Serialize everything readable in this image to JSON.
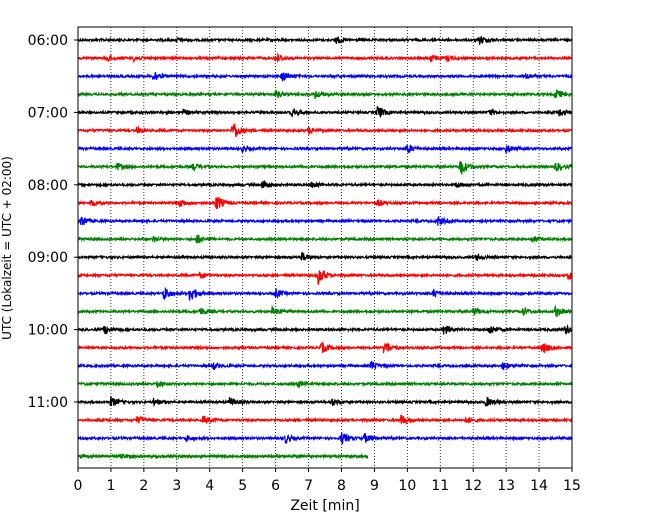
{
  "chart_data": {
    "type": "line",
    "title": "",
    "xlabel": "Zeit  [min]",
    "ylabel": "UTC (Lokalzeit = UTC + 02:00)",
    "xlim": [
      0,
      15
    ],
    "x_ticks": [
      "0",
      "1",
      "2",
      "3",
      "4",
      "5",
      "6",
      "7",
      "8",
      "9",
      "10",
      "11",
      "12",
      "13",
      "14",
      "15"
    ],
    "y_tick_labels": [
      "06:00",
      "07:00",
      "08:00",
      "09:00",
      "10:00",
      "11:00"
    ],
    "grid": "vertical-dotted",
    "colors": [
      "#000000",
      "#ff0000",
      "#0000ff",
      "#008000"
    ],
    "traces": [
      {
        "start": "06:00",
        "color": "#000000",
        "end_min": 15,
        "events": [
          {
            "t": 7.8,
            "a": 0.5
          },
          {
            "t": 12.2,
            "a": 0.5
          },
          {
            "t": 3.0,
            "a": 0.25
          }
        ]
      },
      {
        "start": "06:15",
        "color": "#ff0000",
        "end_min": 15,
        "events": [
          {
            "t": 0.9,
            "a": 0.35
          },
          {
            "t": 1.7,
            "a": 0.3
          },
          {
            "t": 6.0,
            "a": 0.55
          },
          {
            "t": 10.7,
            "a": 0.45
          },
          {
            "t": 11.2,
            "a": 0.3
          }
        ]
      },
      {
        "start": "06:30",
        "color": "#0000ff",
        "end_min": 15,
        "events": [
          {
            "t": 2.3,
            "a": 0.7
          },
          {
            "t": 6.2,
            "a": 0.6
          },
          {
            "t": 13.6,
            "a": 0.3
          }
        ]
      },
      {
        "start": "06:45",
        "color": "#008000",
        "end_min": 15,
        "events": [
          {
            "t": 6.0,
            "a": 0.45
          },
          {
            "t": 7.2,
            "a": 0.5
          },
          {
            "t": 14.5,
            "a": 0.6
          }
        ]
      },
      {
        "start": "07:00",
        "color": "#000000",
        "end_min": 15,
        "events": [
          {
            "t": 3.2,
            "a": 0.3
          },
          {
            "t": 6.5,
            "a": 0.55
          },
          {
            "t": 9.1,
            "a": 0.75
          },
          {
            "t": 12.5,
            "a": 0.4
          },
          {
            "t": 14.6,
            "a": 0.45
          }
        ]
      },
      {
        "start": "07:15",
        "color": "#ff0000",
        "end_min": 15,
        "events": [
          {
            "t": 1.8,
            "a": 0.3
          },
          {
            "t": 4.7,
            "a": 1.2
          },
          {
            "t": 7.0,
            "a": 0.35
          }
        ]
      },
      {
        "start": "07:30",
        "color": "#0000ff",
        "end_min": 15,
        "events": [
          {
            "t": 5.0,
            "a": 0.3
          },
          {
            "t": 10.0,
            "a": 0.55
          },
          {
            "t": 13.0,
            "a": 0.5
          }
        ]
      },
      {
        "start": "07:45",
        "color": "#008000",
        "end_min": 15,
        "events": [
          {
            "t": 1.2,
            "a": 0.4
          },
          {
            "t": 3.5,
            "a": 0.4
          },
          {
            "t": 11.6,
            "a": 1.1
          },
          {
            "t": 14.5,
            "a": 0.5
          }
        ]
      },
      {
        "start": "08:00",
        "color": "#000000",
        "end_min": 15,
        "events": [
          {
            "t": 5.6,
            "a": 0.6
          },
          {
            "t": 7.1,
            "a": 0.4
          },
          {
            "t": 11.5,
            "a": 0.3
          }
        ]
      },
      {
        "start": "08:15",
        "color": "#ff0000",
        "end_min": 15,
        "events": [
          {
            "t": 0.4,
            "a": 0.35
          },
          {
            "t": 3.1,
            "a": 0.5
          },
          {
            "t": 4.2,
            "a": 0.9
          },
          {
            "t": 9.1,
            "a": 0.35
          }
        ]
      },
      {
        "start": "08:30",
        "color": "#0000ff",
        "end_min": 15,
        "events": [
          {
            "t": 0.1,
            "a": 0.6
          },
          {
            "t": 10.9,
            "a": 0.6
          }
        ]
      },
      {
        "start": "08:45",
        "color": "#008000",
        "end_min": 15,
        "events": [
          {
            "t": 2.3,
            "a": 0.3
          },
          {
            "t": 3.6,
            "a": 0.55
          },
          {
            "t": 13.8,
            "a": 0.35
          }
        ]
      },
      {
        "start": "09:00",
        "color": "#000000",
        "end_min": 15,
        "events": [
          {
            "t": 6.8,
            "a": 0.5
          },
          {
            "t": 12.1,
            "a": 0.35
          }
        ]
      },
      {
        "start": "09:15",
        "color": "#ff0000",
        "end_min": 15,
        "events": [
          {
            "t": 3.7,
            "a": 0.35
          },
          {
            "t": 7.3,
            "a": 1.1
          },
          {
            "t": 14.9,
            "a": 0.5
          }
        ]
      },
      {
        "start": "09:30",
        "color": "#0000ff",
        "end_min": 15,
        "events": [
          {
            "t": 2.6,
            "a": 0.8
          },
          {
            "t": 3.4,
            "a": 1.0
          },
          {
            "t": 6.0,
            "a": 0.5
          },
          {
            "t": 10.8,
            "a": 0.5
          }
        ]
      },
      {
        "start": "09:45",
        "color": "#008000",
        "end_min": 15,
        "events": [
          {
            "t": 3.7,
            "a": 0.45
          },
          {
            "t": 5.9,
            "a": 0.5
          },
          {
            "t": 12.0,
            "a": 0.45
          },
          {
            "t": 13.5,
            "a": 0.5
          },
          {
            "t": 14.5,
            "a": 0.6
          }
        ]
      },
      {
        "start": "10:00",
        "color": "#000000",
        "end_min": 15,
        "events": [
          {
            "t": 0.8,
            "a": 0.5
          },
          {
            "t": 11.1,
            "a": 0.6
          },
          {
            "t": 12.5,
            "a": 0.6
          },
          {
            "t": 14.8,
            "a": 0.55
          }
        ]
      },
      {
        "start": "10:15",
        "color": "#ff0000",
        "end_min": 15,
        "events": [
          {
            "t": 7.4,
            "a": 0.6
          },
          {
            "t": 9.3,
            "a": 0.9
          },
          {
            "t": 14.1,
            "a": 0.7
          }
        ]
      },
      {
        "start": "10:30",
        "color": "#0000ff",
        "end_min": 15,
        "events": [
          {
            "t": 4.1,
            "a": 0.4
          },
          {
            "t": 8.9,
            "a": 0.5
          },
          {
            "t": 12.9,
            "a": 0.45
          }
        ]
      },
      {
        "start": "10:45",
        "color": "#008000",
        "end_min": 15,
        "events": [
          {
            "t": 2.4,
            "a": 0.4
          },
          {
            "t": 6.7,
            "a": 0.35
          }
        ]
      },
      {
        "start": "11:00",
        "color": "#000000",
        "end_min": 15,
        "events": [
          {
            "t": 1.0,
            "a": 0.55
          },
          {
            "t": 2.3,
            "a": 0.4
          },
          {
            "t": 4.6,
            "a": 0.55
          },
          {
            "t": 7.7,
            "a": 0.45
          },
          {
            "t": 12.4,
            "a": 0.55
          }
        ]
      },
      {
        "start": "11:15",
        "color": "#ff0000",
        "end_min": 15,
        "events": [
          {
            "t": 1.8,
            "a": 0.4
          },
          {
            "t": 3.8,
            "a": 0.45
          },
          {
            "t": 9.8,
            "a": 0.6
          },
          {
            "t": 11.8,
            "a": 0.35
          }
        ]
      },
      {
        "start": "11:30",
        "color": "#0000ff",
        "end_min": 15,
        "events": [
          {
            "t": 3.3,
            "a": 0.3
          },
          {
            "t": 6.3,
            "a": 0.5
          },
          {
            "t": 8.0,
            "a": 0.7
          },
          {
            "t": 8.7,
            "a": 0.5
          }
        ]
      },
      {
        "start": "11:45",
        "color": "#008000",
        "end_min": 8.8,
        "events": [
          {
            "t": 1.3,
            "a": 0.25
          }
        ]
      }
    ]
  }
}
